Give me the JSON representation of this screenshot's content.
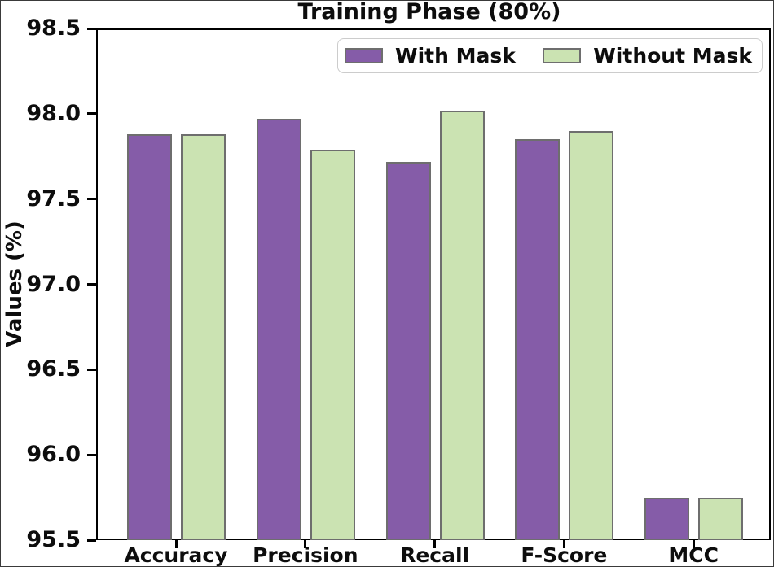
{
  "chart_data": {
    "type": "bar",
    "title": "Training Phase (80%)",
    "ylabel": "Values (%)",
    "xlabel": "",
    "categories": [
      "Accuracy",
      "Precision",
      "Recall",
      "F-Score",
      "MCC"
    ],
    "series": [
      {
        "name": "With Mask",
        "color": "#855ca8",
        "values": [
          97.88,
          97.97,
          97.72,
          97.85,
          95.75
        ]
      },
      {
        "name": "Without Mask",
        "color": "#cbe3b2",
        "values": [
          97.88,
          97.79,
          98.02,
          97.9,
          95.75
        ]
      }
    ],
    "ylim": [
      95.5,
      98.5
    ],
    "ytick_step": 0.5,
    "ytick_decimals": 1,
    "grid": false,
    "legend_position": "upper right inside",
    "bar_edge_color": "#6e6e6e",
    "spine_color": "#000000",
    "text_color": "#0d0d0d",
    "background": "#ffffff"
  }
}
